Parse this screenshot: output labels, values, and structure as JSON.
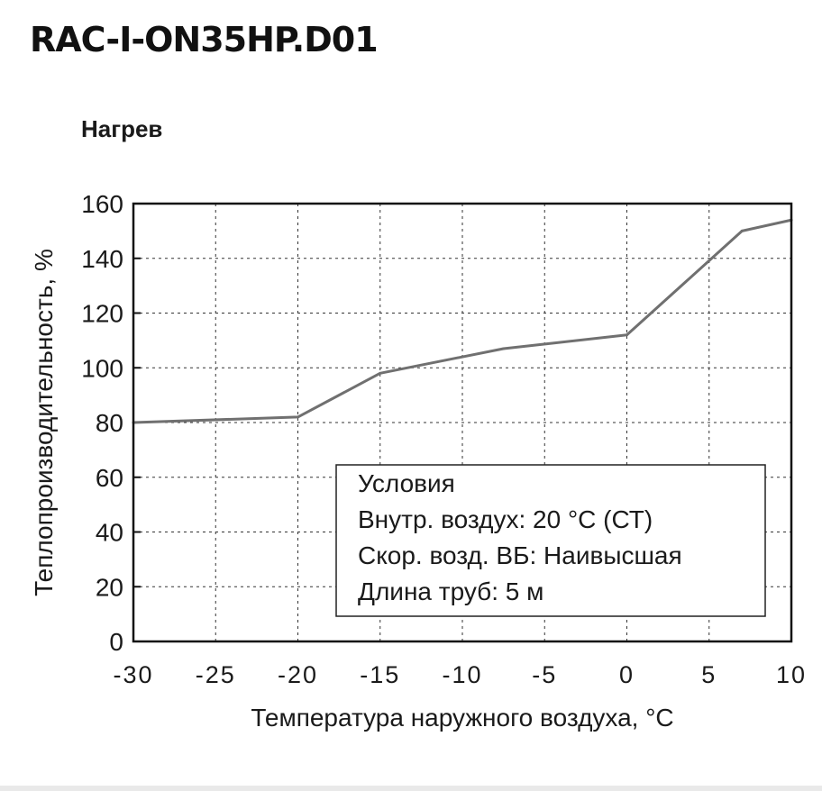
{
  "model": "RAC-I-ON35HP.D01",
  "mode_label": "Нагрев",
  "chart_data": {
    "type": "line",
    "title": "",
    "xlabel": "Температура наружного воздуха, °C",
    "ylabel": "Теплопроизводительность, %",
    "xlim": [
      -30,
      10
    ],
    "ylim": [
      0,
      160
    ],
    "xticks": [
      -30,
      -25,
      -20,
      -15,
      -10,
      -5,
      0,
      5,
      10
    ],
    "yticks": [
      0,
      20,
      40,
      60,
      80,
      100,
      120,
      140,
      160
    ],
    "grid": true,
    "line_color": "#707070",
    "series": [
      {
        "x": [
          -30,
          -20,
          -15,
          -7.5,
          0,
          7,
          10
        ],
        "y": [
          80,
          82,
          98,
          107,
          112,
          150,
          154
        ]
      }
    ],
    "conditions": {
      "title": "Условия",
      "lines": [
        "Внутр. воздух: 20 °C (СТ)",
        "Скор. возд. ВБ: Наивысшая",
        "Длина труб: 5 м"
      ]
    }
  }
}
